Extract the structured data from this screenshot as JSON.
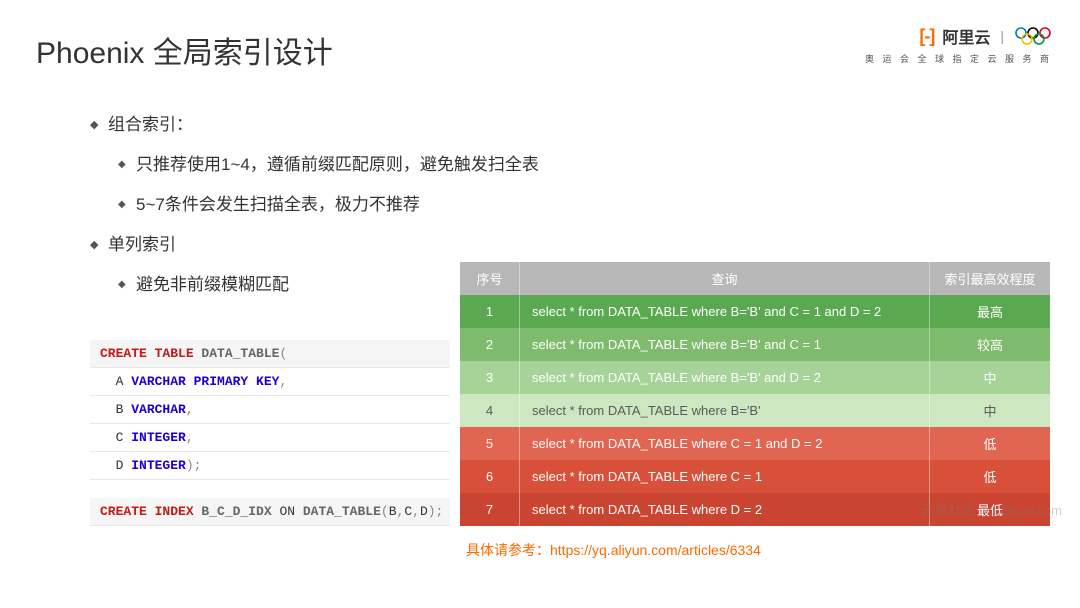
{
  "title": "Phoenix 全局索引设计",
  "logo": {
    "brand_glyph": "[-]",
    "brand_text": "阿里云",
    "tagline": "奥 运 会 全 球 指 定 云 服 务 商",
    "brand_color": "#ff6a00"
  },
  "bullets": {
    "l1a": "组合索引：",
    "l2a": "只推荐使用1~4，遵循前缀匹配原则，避免触发扫全表",
    "l2b": "5~7条件会发生扫描全表，极力不推荐",
    "l1b": "单列索引",
    "l2c": "避免非前缀模糊匹配"
  },
  "code": {
    "lines": [
      {
        "head": true,
        "tokens": [
          [
            "kw-create",
            "CREATE TABLE "
          ],
          [
            "kw-ident",
            "DATA_TABLE"
          ],
          [
            "punct",
            "("
          ]
        ]
      },
      {
        "head": false,
        "tokens": [
          [
            "",
            "  A "
          ],
          [
            "kw-type",
            "VARCHAR PRIMARY KEY"
          ],
          [
            "punct",
            ","
          ]
        ]
      },
      {
        "head": false,
        "tokens": [
          [
            "",
            "  B "
          ],
          [
            "kw-type",
            "VARCHAR"
          ],
          [
            "punct",
            ","
          ]
        ]
      },
      {
        "head": false,
        "tokens": [
          [
            "",
            "  C "
          ],
          [
            "kw-type",
            "INTEGER"
          ],
          [
            "punct",
            ","
          ]
        ]
      },
      {
        "head": false,
        "tokens": [
          [
            "",
            "  D "
          ],
          [
            "kw-type",
            "INTEGER"
          ],
          [
            "punct",
            ");"
          ]
        ]
      },
      {
        "gap": true
      },
      {
        "head": true,
        "tokens": [
          [
            "kw-create",
            "CREATE INDEX "
          ],
          [
            "kw-ident",
            "B_C_D_IDX"
          ],
          [
            "",
            " ON "
          ],
          [
            "kw-ident",
            "DATA_TABLE"
          ],
          [
            "punct",
            "("
          ],
          [
            "",
            "B"
          ],
          [
            "punct",
            ","
          ],
          [
            "",
            "C"
          ],
          [
            "punct",
            ","
          ],
          [
            "",
            "D"
          ],
          [
            "punct",
            ");"
          ]
        ]
      }
    ]
  },
  "table": {
    "header": {
      "idx": "序号",
      "qry": "查询",
      "eff": "索引最高效程度"
    },
    "header_bg": "#b7b7b7",
    "rows": [
      {
        "idx": "1",
        "qry": "select * from DATA_TABLE where B='B' and C = 1 and D = 2",
        "eff": "最高",
        "bg": "#5aa84f"
      },
      {
        "idx": "2",
        "qry": "select * from DATA_TABLE where B='B' and C = 1",
        "eff": "较高",
        "bg": "#7ebb6c"
      },
      {
        "idx": "3",
        "qry": "select * from DATA_TABLE where B='B' and D = 2",
        "eff": "中",
        "bg": "#a6d498"
      },
      {
        "idx": "4",
        "qry": "select * from DATA_TABLE where B='B'",
        "eff": "中",
        "bg": "#cde8c1"
      },
      {
        "idx": "5",
        "qry": "select * from DATA_TABLE where C = 1 and D = 2",
        "eff": "低",
        "bg": "#e06651"
      },
      {
        "idx": "6",
        "qry": "select * from DATA_TABLE where C = 1",
        "eff": "低",
        "bg": "#d9503a"
      },
      {
        "idx": "7",
        "qry": "select * from DATA_TABLE where D = 2",
        "eff": "最低",
        "bg": "#c94531"
      }
    ],
    "row4_text_color": "#5a5a5a"
  },
  "footnote": "具体请参考：https://yq.aliyun.com/articles/6334",
  "watermark": {
    "cn": "云栖社区",
    "url": "yq.aliyun.com"
  }
}
